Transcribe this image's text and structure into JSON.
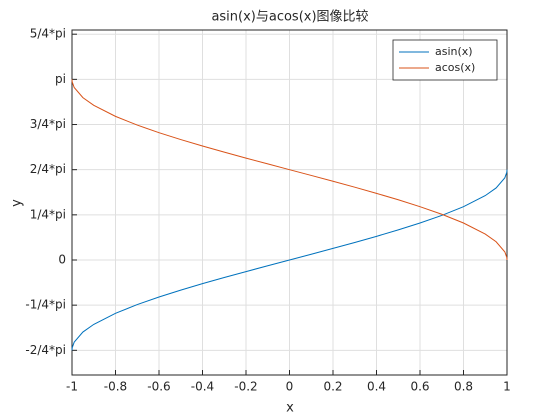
{
  "chart_data": {
    "type": "line",
    "title": "asin(x)与acos(x)图像比较",
    "x_label": "x",
    "y_label": "y",
    "x": [
      -1,
      -0.999,
      -0.99,
      -0.95,
      -0.9,
      -0.8,
      -0.7,
      -0.6,
      -0.5,
      -0.4,
      -0.3,
      -0.2,
      -0.1,
      0,
      0.1,
      0.2,
      0.3,
      0.4,
      0.5,
      0.6,
      0.7,
      0.8,
      0.9,
      0.95,
      0.99,
      0.999,
      1
    ],
    "series": [
      {
        "name": "asin(x)",
        "color": "#0072BD",
        "values": [
          -1.5708,
          -1.5261,
          -1.4293,
          -1.2532,
          -1.1198,
          -0.9273,
          -0.7754,
          -0.6435,
          -0.5236,
          -0.4115,
          -0.3047,
          -0.2014,
          -0.1002,
          0,
          0.1002,
          0.2014,
          0.3047,
          0.4115,
          0.5236,
          0.6435,
          0.7754,
          0.9273,
          1.1198,
          1.2532,
          1.4293,
          1.5261,
          1.5708
        ]
      },
      {
        "name": "acos(x)",
        "color": "#D95319",
        "values": [
          3.1416,
          3.0969,
          3.0001,
          2.824,
          2.6906,
          2.4981,
          2.3462,
          2.2143,
          2.0944,
          1.9823,
          1.8755,
          1.7722,
          1.671,
          1.5708,
          1.4706,
          1.3694,
          1.2661,
          1.1593,
          1.0472,
          0.9273,
          0.7954,
          0.6435,
          0.451,
          0.3176,
          0.1415,
          0.0447,
          0
        ]
      }
    ],
    "xlim": [
      -1,
      1
    ],
    "xticks": [
      -1,
      -0.8,
      -0.6,
      -0.4,
      -0.2,
      0,
      0.2,
      0.4,
      0.6,
      0.8,
      1
    ],
    "ylim": [
      -2,
      4
    ],
    "yticks": [
      {
        "value": -1.5708,
        "label": "-2/4*pi"
      },
      {
        "value": -0.7854,
        "label": "-1/4*pi"
      },
      0,
      {
        "value": 0.7854,
        "label": "1/4*pi"
      },
      {
        "value": 1.5708,
        "label": "2/4*pi"
      },
      {
        "value": 2.3562,
        "label": "3/4*pi"
      },
      {
        "value": 3.1416,
        "label": "pi"
      },
      {
        "value": 3.927,
        "label": "5/4*pi"
      }
    ],
    "grid": true,
    "legend_position": "northeast"
  }
}
